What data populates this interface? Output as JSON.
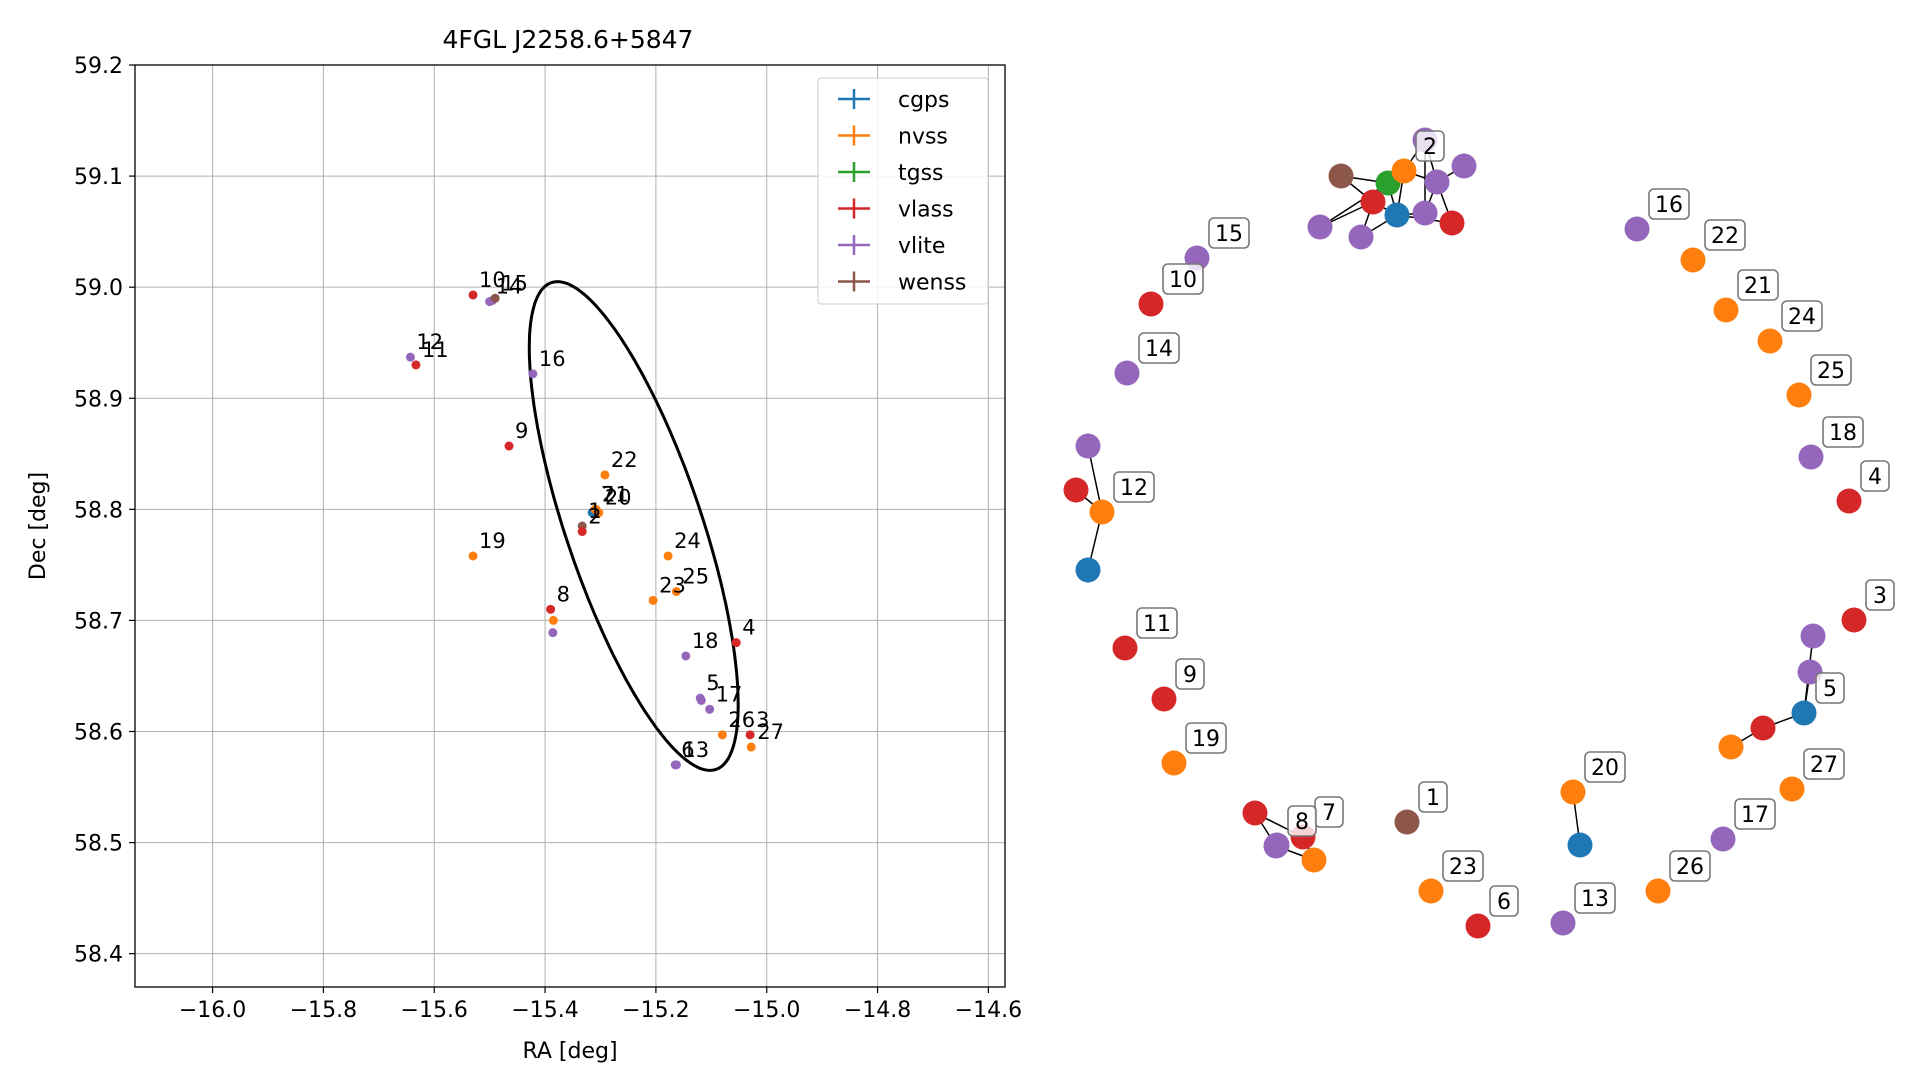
{
  "chart_data": [
    {
      "type": "scatter",
      "title": "4FGL J2258.6+5847",
      "xlabel": "RA [deg]",
      "ylabel": "Dec [deg]",
      "xlim": [
        -16.14,
        -14.57
      ],
      "ylim": [
        58.37,
        59.2
      ],
      "xticks": [
        -16.0,
        -15.8,
        -15.6,
        -15.4,
        -15.2,
        -15.0,
        -14.8,
        -14.6
      ],
      "xtick_labels": [
        "−16.0",
        "−15.8",
        "−15.6",
        "−15.4",
        "−15.2",
        "−15.0",
        "−14.8",
        "−14.6"
      ],
      "yticks": [
        58.4,
        58.5,
        58.6,
        58.7,
        58.8,
        58.9,
        59.0,
        59.1,
        59.2
      ],
      "ytick_labels": [
        "58.4",
        "58.5",
        "58.6",
        "58.7",
        "58.8",
        "58.9",
        "59.0",
        "59.1",
        "59.2"
      ],
      "grid": true,
      "legend_position": "top-right",
      "legend": [
        "cgps",
        "nvss",
        "tgss",
        "vlass",
        "vlite",
        "wenss"
      ],
      "colors": {
        "cgps": "#1f77b4",
        "nvss": "#ff7f0e",
        "tgss": "#2ca02c",
        "vlass": "#d62728",
        "vlite": "#9467bd",
        "wenss": "#8c564b"
      },
      "ellipse": {
        "center": [
          -15.24,
          58.785
        ],
        "semi_major": 0.27,
        "semi_minor": 0.105,
        "angle_deg": -51,
        "color": "#000000"
      },
      "points": [
        {
          "label": "1",
          "survey": "wenss",
          "x": -15.333,
          "y": 58.785
        },
        {
          "label": "2",
          "survey": "vlass",
          "x": -15.333,
          "y": 58.78
        },
        {
          "label": "3",
          "survey": "vlass",
          "x": -15.03,
          "y": 58.597
        },
        {
          "label": "4",
          "survey": "vlass",
          "x": -15.055,
          "y": 58.68
        },
        {
          "label": "5",
          "survey": "vlite",
          "x": -15.12,
          "y": 58.63
        },
        {
          "label": "6",
          "survey": "vlite",
          "x": -15.165,
          "y": 58.57
        },
        {
          "label": "7",
          "survey": "nvss",
          "x": -15.31,
          "y": 58.8
        },
        {
          "label": "8",
          "survey": "vlass",
          "x": -15.39,
          "y": 58.71
        },
        {
          "label": "9",
          "survey": "vlass",
          "x": -15.465,
          "y": 58.857
        },
        {
          "label": "10",
          "survey": "vlass",
          "x": -15.53,
          "y": 58.993
        },
        {
          "label": "11",
          "survey": "vlass",
          "x": -15.633,
          "y": 58.93
        },
        {
          "label": "12",
          "survey": "vlite",
          "x": -15.643,
          "y": 58.937
        },
        {
          "label": "13",
          "survey": "vlite",
          "x": -15.163,
          "y": 58.57
        },
        {
          "label": "14",
          "survey": "vlite",
          "x": -15.5,
          "y": 58.987
        },
        {
          "label": "15",
          "survey": "wenss",
          "x": -15.49,
          "y": 58.99
        },
        {
          "label": "16",
          "survey": "vlite",
          "x": -15.422,
          "y": 58.922
        },
        {
          "label": "17",
          "survey": "vlite",
          "x": -15.103,
          "y": 58.62
        },
        {
          "label": "18",
          "survey": "vlite",
          "x": -15.146,
          "y": 58.668
        },
        {
          "label": "19",
          "survey": "nvss",
          "x": -15.53,
          "y": 58.758
        },
        {
          "label": "20",
          "survey": "nvss",
          "x": -15.303,
          "y": 58.797
        },
        {
          "label": "21",
          "survey": "nvss",
          "x": -15.308,
          "y": 58.8
        },
        {
          "label": "22",
          "survey": "nvss",
          "x": -15.292,
          "y": 58.831
        },
        {
          "label": "23",
          "survey": "nvss",
          "x": -15.205,
          "y": 58.718
        },
        {
          "label": "24",
          "survey": "nvss",
          "x": -15.178,
          "y": 58.758
        },
        {
          "label": "25",
          "survey": "nvss",
          "x": -15.163,
          "y": 58.726
        },
        {
          "label": "26",
          "survey": "nvss",
          "x": -15.08,
          "y": 58.597
        },
        {
          "label": "27",
          "survey": "nvss",
          "x": -15.028,
          "y": 58.586
        }
      ],
      "extra_points": [
        {
          "survey": "vlite",
          "x": -15.495,
          "y": 58.988
        },
        {
          "survey": "nvss",
          "x": -15.385,
          "y": 58.7
        },
        {
          "survey": "vlite",
          "x": -15.386,
          "y": 58.689
        },
        {
          "survey": "vlite",
          "x": -15.118,
          "y": 58.628
        },
        {
          "survey": "cgps",
          "x": -15.315,
          "y": 58.797
        }
      ]
    },
    {
      "type": "network",
      "labeled_nodes": [
        {
          "label": "1",
          "survey": "wenss"
        },
        {
          "label": "2",
          "survey": "nvss"
        },
        {
          "label": "3",
          "survey": "vlass"
        },
        {
          "label": "4",
          "survey": "vlass"
        },
        {
          "label": "5",
          "survey": "cgps"
        },
        {
          "label": "6",
          "survey": "vlass"
        },
        {
          "label": "7",
          "survey": "vlass"
        },
        {
          "label": "8",
          "survey": "vlite"
        },
        {
          "label": "9",
          "survey": "vlass"
        },
        {
          "label": "10",
          "survey": "vlass"
        },
        {
          "label": "11",
          "survey": "vlass"
        },
        {
          "label": "12",
          "survey": "nvss"
        },
        {
          "label": "13",
          "survey": "vlite"
        },
        {
          "label": "14",
          "survey": "vlite"
        },
        {
          "label": "15",
          "survey": "vlite"
        },
        {
          "label": "16",
          "survey": "vlite"
        },
        {
          "label": "17",
          "survey": "vlite"
        },
        {
          "label": "18",
          "survey": "vlite"
        },
        {
          "label": "19",
          "survey": "nvss"
        },
        {
          "label": "20",
          "survey": "nvss"
        },
        {
          "label": "21",
          "survey": "nvss"
        },
        {
          "label": "22",
          "survey": "nvss"
        },
        {
          "label": "23",
          "survey": "nvss"
        },
        {
          "label": "24",
          "survey": "nvss"
        },
        {
          "label": "25",
          "survey": "nvss"
        },
        {
          "label": "26",
          "survey": "nvss"
        },
        {
          "label": "27",
          "survey": "nvss"
        }
      ]
    }
  ]
}
